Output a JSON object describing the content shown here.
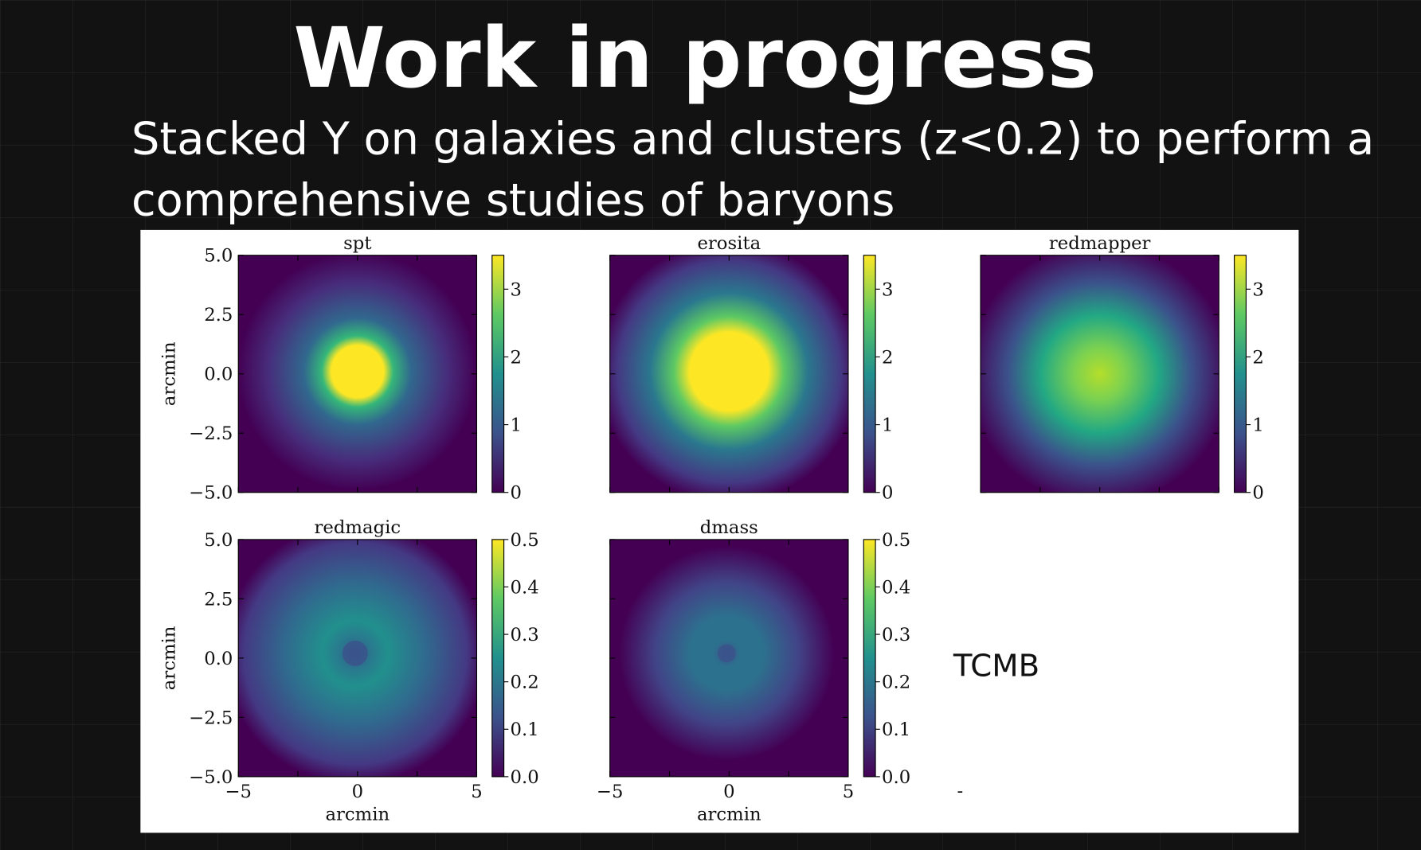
{
  "slide": {
    "title": "Work in progress",
    "subtitle_lines": [
      "Stacked Y on galaxies and clusters (z<0.2) to perform a",
      "comprehensive studies of baryons"
    ],
    "figure": {
      "panels": [
        {
          "title": "spt",
          "y_label": "arcmin",
          "y_ticks": [
            "5.0",
            "2.5",
            "0.0",
            "−2.5",
            "−5.0"
          ],
          "colorbar_ticks": [
            "0",
            "1",
            "2",
            "3"
          ]
        },
        {
          "title": "erosita",
          "colorbar_ticks": [
            "0",
            "1",
            "2",
            "3"
          ]
        },
        {
          "title": "redmapper",
          "colorbar_ticks": [
            "0",
            "1",
            "2",
            "3"
          ]
        },
        {
          "title": "redmagic",
          "y_label": "arcmin",
          "y_ticks": [
            "5.0",
            "2.5",
            "0.0",
            "−2.5",
            "−5.0"
          ],
          "x_label": "arcmin",
          "x_ticks": [
            "−5",
            "0",
            "5"
          ],
          "colorbar_ticks": [
            "0.0",
            "0.1",
            "0.2",
            "0.3",
            "0.4",
            "0.5"
          ]
        },
        {
          "title": "dmass",
          "x_label": "arcmin",
          "x_ticks": [
            "−5",
            "0",
            "5"
          ],
          "colorbar_ticks": [
            "0.0",
            "0.1",
            "0.2",
            "0.3",
            "0.4",
            "0.5"
          ]
        }
      ],
      "annotation": "TCMB",
      "dash": "-"
    }
  }
}
